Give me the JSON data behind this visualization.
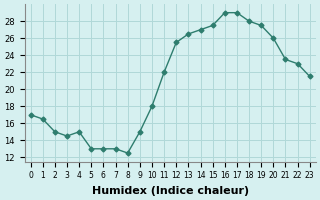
{
  "x": [
    0,
    1,
    2,
    3,
    4,
    5,
    6,
    7,
    8,
    9,
    10,
    11,
    12,
    13,
    14,
    15,
    16,
    17,
    18,
    19,
    20,
    21,
    22,
    23
  ],
  "y": [
    17,
    16.5,
    15,
    14.5,
    15,
    13,
    13,
    13,
    12.5,
    15,
    18,
    22,
    25.5,
    26.5,
    27,
    27.5,
    29,
    29,
    28,
    27.5,
    26,
    23.5,
    23,
    21.5
  ],
  "line_color": "#2e7d6e",
  "marker": "D",
  "marker_size": 2.5,
  "bg_color": "#d6f0f0",
  "grid_color": "#b0d8d8",
  "xlabel": "Humidex (Indice chaleur)",
  "xlabel_fontsize": 8,
  "ylabel_ticks": [
    12,
    14,
    16,
    18,
    20,
    22,
    24,
    26,
    28
  ],
  "xlim": [
    -0.5,
    23.5
  ],
  "ylim": [
    11.5,
    30.0
  ]
}
